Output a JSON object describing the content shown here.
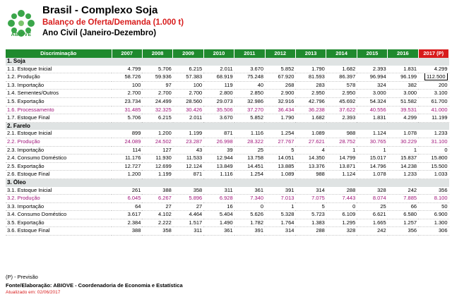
{
  "header": {
    "logo_text": "ABIOVE",
    "title": "Brasil - Complexo Soja",
    "subtitle": "Balanço de Oferta/Demanda  (1.000 t)",
    "period": "Ano Civil (Janeiro-Dezembro)"
  },
  "colors": {
    "green": "#1f8a2e",
    "red": "#d81c1c",
    "purple": "#a0157a",
    "section_bg": "#dfe3e3"
  },
  "table": {
    "columns": [
      "Discriminação",
      "2007",
      "2008",
      "2009",
      "2010",
      "2011",
      "2012",
      "2013",
      "2014",
      "2015",
      "2016",
      "2017 (P)"
    ],
    "sections": [
      {
        "title": "1. Soja",
        "rows": [
          {
            "label": "1.1. Estoque Inicial",
            "values": [
              "4.799",
              "5.706",
              "6.215",
              "2.011",
              "3.670",
              "5.852",
              "1.790",
              "1.682",
              "2.393",
              "1.831",
              "4.299"
            ]
          },
          {
            "label": "1.2. Produção",
            "values": [
              "58.726",
              "59.936",
              "57.383",
              "68.919",
              "75.248",
              "67.920",
              "81.593",
              "86.397",
              "96.994",
              "96.199",
              "112.500"
            ]
          },
          {
            "label": "1.3. Importação",
            "values": [
              "100",
              "97",
              "100",
              "119",
              "40",
              "268",
              "283",
              "578",
              "324",
              "382",
              "200"
            ]
          },
          {
            "label": "1.4. Sementes/Outros",
            "values": [
              "2.700",
              "2.700",
              "2.700",
              "2.800",
              "2.850",
              "2.900",
              "2.950",
              "2.950",
              "3.000",
              "3.000",
              "3.100"
            ]
          },
          {
            "label": "1.5. Exportação",
            "values": [
              "23.734",
              "24.499",
              "28.560",
              "29.073",
              "32.986",
              "32.916",
              "42.796",
              "45.692",
              "54.324",
              "51.582",
              "61.700"
            ]
          },
          {
            "label": "1.6. Processamento",
            "values": [
              "31.485",
              "32.325",
              "30.426",
              "35.506",
              "37.270",
              "36.434",
              "36.238",
              "37.622",
              "40.556",
              "39.531",
              "41.000"
            ]
          },
          {
            "label": "1.7. Estoque Final",
            "values": [
              "5.706",
              "6.215",
              "2.011",
              "3.670",
              "5.852",
              "1.790",
              "1.682",
              "2.393",
              "1.831",
              "4.299",
              "11.199"
            ]
          }
        ]
      },
      {
        "title": "2. Farelo",
        "rows": [
          {
            "label": "2.1. Estoque Inicial",
            "values": [
              "899",
              "1.200",
              "1.199",
              "871",
              "1.116",
              "1.254",
              "1.089",
              "988",
              "1.124",
              "1.078",
              "1.233"
            ]
          },
          {
            "label": "2.2. Produção",
            "values": [
              "24.089",
              "24.502",
              "23.287",
              "26.998",
              "28.322",
              "27.767",
              "27.621",
              "28.752",
              "30.765",
              "30.229",
              "31.100"
            ]
          },
          {
            "label": "2.3. Importação",
            "values": [
              "114",
              "127",
              "43",
              "39",
              "25",
              "5",
              "4",
              "1",
              "1",
              "1",
              "0"
            ]
          },
          {
            "label": "2.4. Consumo Doméstico",
            "values": [
              "11.176",
              "11.930",
              "11.533",
              "12.944",
              "13.758",
              "14.051",
              "14.350",
              "14.799",
              "15.017",
              "15.837",
              "15.800"
            ]
          },
          {
            "label": "2.5. Exportação",
            "values": [
              "12.727",
              "12.699",
              "12.124",
              "13.849",
              "14.451",
              "13.885",
              "13.376",
              "13.871",
              "14.796",
              "14.238",
              "15.500"
            ]
          },
          {
            "label": "2.6. Estoque Final",
            "values": [
              "1.200",
              "1.199",
              "871",
              "1.116",
              "1.254",
              "1.089",
              "988",
              "1.124",
              "1.078",
              "1.233",
              "1.033"
            ]
          }
        ]
      },
      {
        "title": "3. Óleo",
        "rows": [
          {
            "label": "3.1. Estoque Inicial",
            "values": [
              "261",
              "388",
              "358",
              "311",
              "361",
              "391",
              "314",
              "288",
              "328",
              "242",
              "356"
            ]
          },
          {
            "label": "3.2. Produção",
            "values": [
              "6.045",
              "6.267",
              "5.896",
              "6.928",
              "7.340",
              "7.013",
              "7.075",
              "7.443",
              "8.074",
              "7.885",
              "8.100"
            ]
          },
          {
            "label": "3.3. Importação",
            "values": [
              "64",
              "27",
              "27",
              "16",
              "0",
              "1",
              "5",
              "0",
              "25",
              "66",
              "50"
            ]
          },
          {
            "label": "3.4. Consumo Doméstico",
            "values": [
              "3.617",
              "4.102",
              "4.464",
              "5.404",
              "5.626",
              "5.328",
              "5.723",
              "6.109",
              "6.621",
              "6.580",
              "6.900"
            ]
          },
          {
            "label": "3.5. Exportação",
            "values": [
              "2.384",
              "2.222",
              "1.517",
              "1.490",
              "1.782",
              "1.764",
              "1.383",
              "1.295",
              "1.665",
              "1.257",
              "1.300"
            ]
          },
          {
            "label": "3.6. Estoque Final",
            "values": [
              "388",
              "358",
              "311",
              "361",
              "391",
              "314",
              "288",
              "328",
              "242",
              "356",
              "306"
            ]
          }
        ]
      }
    ]
  },
  "footer": {
    "note": "(P) - Previsão",
    "source": "Fonte/Elaboração: ABIOVE - Coordenadoria de Economia e Estatística",
    "updated": "Atualizado em: 02/06/2017"
  }
}
